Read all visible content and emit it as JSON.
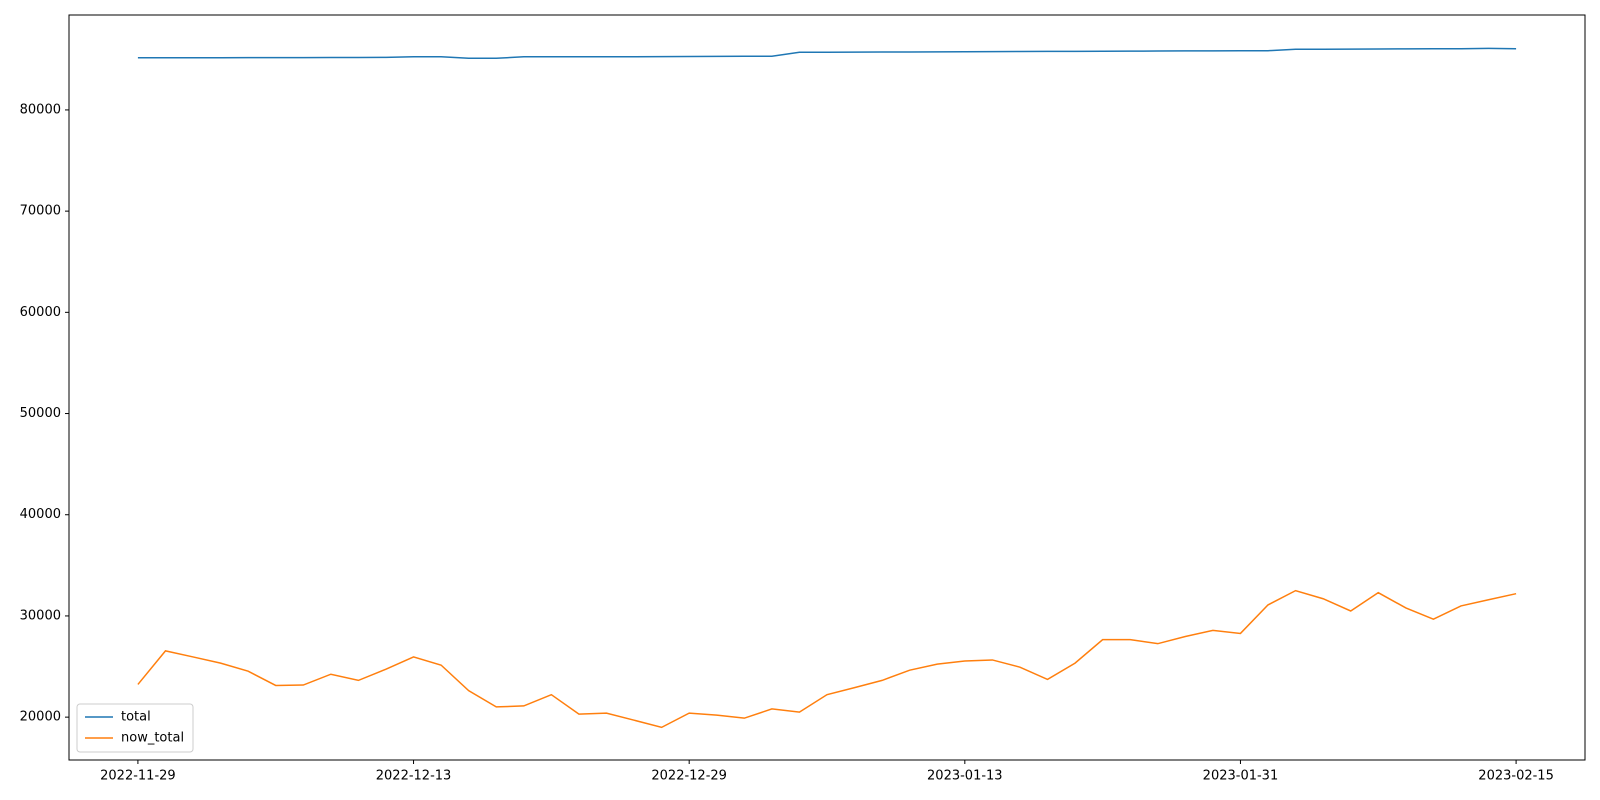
{
  "chart_data": {
    "type": "line",
    "categories": [
      "2022-11-29",
      null,
      null,
      null,
      null,
      null,
      null,
      null,
      null,
      null,
      "2022-12-13",
      null,
      null,
      null,
      null,
      null,
      null,
      null,
      null,
      null,
      "2022-12-29",
      null,
      null,
      null,
      null,
      null,
      null,
      null,
      null,
      null,
      "2023-01-13",
      null,
      null,
      null,
      null,
      null,
      null,
      null,
      null,
      null,
      "2023-01-31",
      null,
      null,
      null,
      null,
      null,
      null,
      null,
      null,
      null,
      "2023-02-15"
    ],
    "series": [
      {
        "name": "total",
        "color": "#1f77b4",
        "values": [
          85150,
          85150,
          85160,
          85160,
          85170,
          85170,
          85170,
          85180,
          85180,
          85190,
          85250,
          85250,
          85100,
          85100,
          85250,
          85250,
          85250,
          85260,
          85260,
          85270,
          85280,
          85290,
          85300,
          85300,
          85700,
          85700,
          85710,
          85720,
          85730,
          85740,
          85750,
          85760,
          85770,
          85780,
          85790,
          85800,
          85810,
          85820,
          85830,
          85840,
          85850,
          85850,
          86000,
          86000,
          86010,
          86020,
          86030,
          86040,
          86050,
          86080,
          86050
        ]
      },
      {
        "name": "now_total",
        "color": "#ff7f0e",
        "values": [
          23230,
          26550,
          25950,
          25340,
          24540,
          23130,
          23170,
          24240,
          23630,
          24740,
          25950,
          25140,
          22620,
          21010,
          21110,
          22220,
          20300,
          20400,
          19700,
          18990,
          20400,
          20200,
          19900,
          20810,
          20500,
          22220,
          22920,
          23630,
          24640,
          25240,
          25550,
          25650,
          24940,
          23730,
          25340,
          27660,
          27660,
          27260,
          27970,
          28570,
          28270,
          31090,
          32500,
          31700,
          30490,
          32300,
          30790,
          29680,
          30990,
          31600,
          32200
        ]
      }
    ],
    "ylim": [
      15765,
      89380
    ],
    "yticks": [
      20000,
      30000,
      40000,
      50000,
      60000,
      70000,
      80000
    ],
    "grid": false,
    "legend": "lower left"
  }
}
